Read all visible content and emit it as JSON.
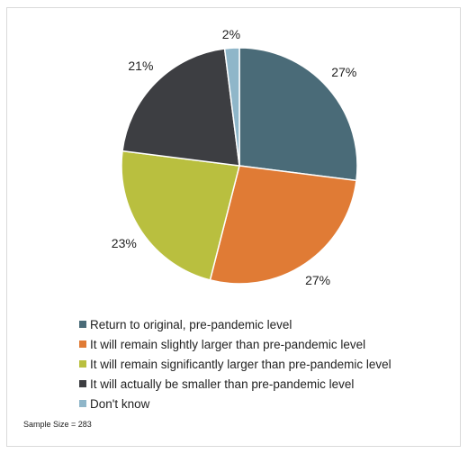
{
  "chart_data": {
    "type": "pie",
    "title": "",
    "slices": [
      {
        "name": "Return to original, pre-pandemic level",
        "value": 27,
        "label": "27%",
        "color": "#4a6b78"
      },
      {
        "name": "It will remain slightly larger than pre-pandemic level",
        "value": 27,
        "label": "27%",
        "color": "#e07b35"
      },
      {
        "name": "It will remain significantly larger than pre-pandemic level",
        "value": 23,
        "label": "23%",
        "color": "#b9bf3f"
      },
      {
        "name": "It will actually be smaller than pre-pandemic level",
        "value": 21,
        "label": "21%",
        "color": "#3d3e42"
      },
      {
        "name": "Don't know",
        "value": 2,
        "label": "2%",
        "color": "#8fb6c9"
      }
    ],
    "legend_position": "bottom",
    "start": "top",
    "direction": "clockwise"
  },
  "legend": [
    {
      "label": "Return to original, pre-pandemic level",
      "color": "#4a6b78"
    },
    {
      "label": "It will remain slightly larger than pre-pandemic level",
      "color": "#e07b35"
    },
    {
      "label": "It will remain significantly larger than pre-pandemic level",
      "color": "#b9bf3f"
    },
    {
      "label": "It will actually be smaller than pre-pandemic level",
      "color": "#3d3e42"
    },
    {
      "label": "Don't know",
      "color": "#8fb6c9"
    }
  ],
  "footnote": "Sample Size = 283"
}
